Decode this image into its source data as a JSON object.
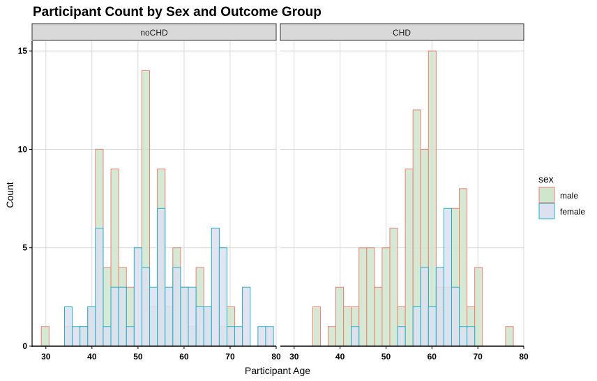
{
  "chart_data": {
    "type": "bar",
    "subtype": "faceted-histogram",
    "title": "Participant Count by Sex and Outcome Group",
    "xlabel": "Participant Age",
    "ylabel": "Count",
    "xlim": [
      27,
      80
    ],
    "ylim": [
      0,
      15.5
    ],
    "x_ticks": [
      30,
      40,
      50,
      60,
      70,
      80
    ],
    "y_ticks": [
      0,
      5,
      10,
      15
    ],
    "bin_start": 29,
    "bin_width": 1.68,
    "grid": true,
    "legend": {
      "title": "sex",
      "position": "right"
    },
    "colors": {
      "male_fill": "#cfe5cc",
      "male_line": "#f07f72",
      "female_fill": "#dde1ee",
      "female_line": "#1fb0c9",
      "strip_fill": "#d9d9d9",
      "grid": "#d9d9d9"
    },
    "series": [
      {
        "name": "male",
        "key": "male"
      },
      {
        "name": "female",
        "key": "female"
      }
    ],
    "panels": [
      {
        "label": "noCHD",
        "male": [
          1,
          0,
          0,
          1,
          0,
          1,
          2,
          10,
          4,
          9,
          4,
          3,
          0,
          14,
          2,
          9,
          2,
          5,
          3,
          1,
          4,
          2,
          0,
          1,
          2,
          0,
          0,
          0,
          0
        ],
        "female": [
          0,
          0,
          0,
          2,
          1,
          1,
          2,
          6,
          1,
          3,
          3,
          1,
          5,
          4,
          3,
          7,
          3,
          4,
          3,
          3,
          2,
          2,
          6,
          5,
          1,
          1,
          3,
          0,
          1,
          1
        ]
      },
      {
        "label": "CHD",
        "male": [
          0,
          0,
          0,
          2,
          0,
          1,
          3,
          2,
          2,
          5,
          5,
          3,
          5,
          6,
          2,
          9,
          12,
          10,
          15,
          3,
          3,
          7,
          8,
          2,
          4,
          0,
          0,
          0,
          1
        ],
        "female": [
          0,
          0,
          0,
          0,
          0,
          0,
          0,
          0,
          1,
          0,
          0,
          0,
          0,
          0,
          1,
          0,
          2,
          4,
          2,
          4,
          7,
          3,
          1,
          1,
          0,
          0,
          0,
          0,
          0
        ]
      }
    ]
  }
}
